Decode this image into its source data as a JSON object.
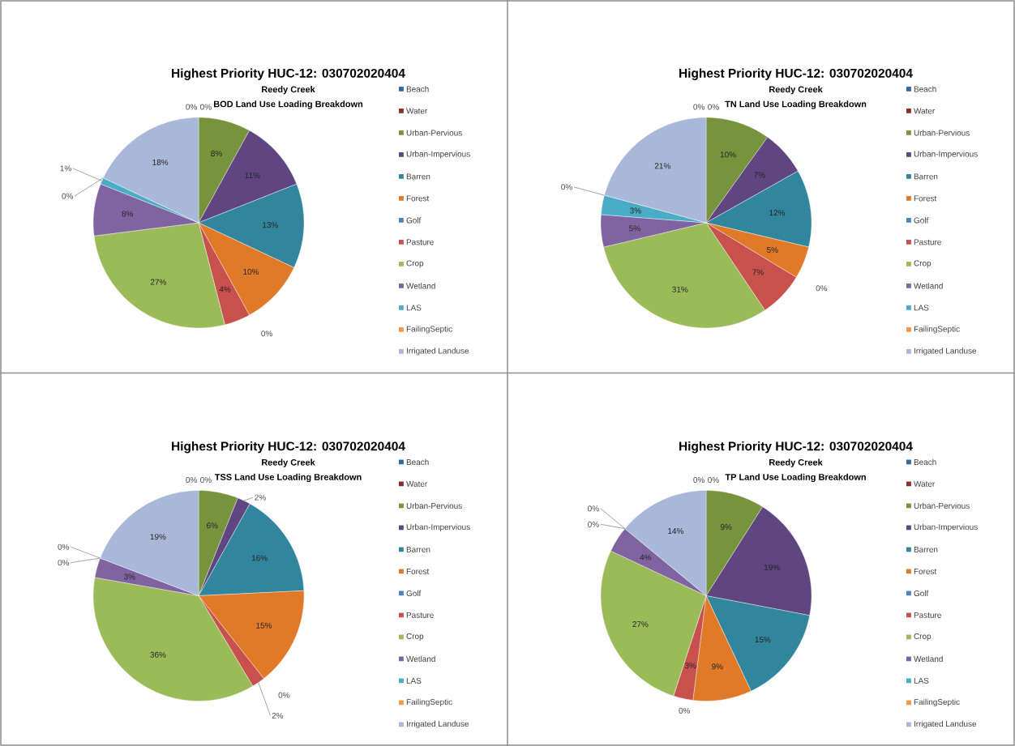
{
  "chart_data": [
    {
      "type": "pie",
      "title": "Highest Priority HUC-12: 030702020404",
      "subtitle": "Reedy Creek",
      "annotations": [
        "BOD  Land Use Loading Breakdown"
      ],
      "legend": "right",
      "categories": [
        "Beach",
        "Water",
        "Urban-Pervious",
        "Urban-Impervious",
        "Barren",
        "Forest",
        "Golf",
        "Pasture",
        "Crop",
        "Wetland",
        "LAS",
        "FailingSeptic",
        "Irrigated Landuse"
      ],
      "values": [
        0,
        0,
        8,
        11,
        13,
        10,
        0,
        4,
        27,
        8,
        1,
        0,
        18
      ],
      "value_labels": [
        "0%",
        "0%",
        "8%",
        "11%",
        "13%",
        "10%",
        "0%",
        "4%",
        "27%",
        "8%",
        "1%",
        "0%",
        "18%"
      ],
      "colors": [
        "#35689e",
        "#8b2e2b",
        "#77933c",
        "#5f4680",
        "#31859c",
        "#e07a28",
        "#4f81bd",
        "#c8504d",
        "#9bbb59",
        "#8064a2",
        "#4bacc6",
        "#f79646",
        "#a9b7d8"
      ]
    },
    {
      "type": "pie",
      "title": "Highest Priority HUC-12: 030702020404",
      "subtitle": "Reedy Creek",
      "annotations": [
        "TN  Land Use Loading Breakdown"
      ],
      "legend": "right",
      "categories": [
        "Beach",
        "Water",
        "Urban-Pervious",
        "Urban-Impervious",
        "Barren",
        "Forest",
        "Golf",
        "Pasture",
        "Crop",
        "Wetland",
        "LAS",
        "FailingSeptic",
        "Irrigated Landuse"
      ],
      "values": [
        0,
        0,
        10,
        7,
        12,
        5,
        0,
        7,
        31,
        5,
        3,
        0,
        21
      ],
      "value_labels": [
        "0%",
        "0%",
        "10%",
        "7%",
        "12%",
        "5%",
        "0%",
        "7%",
        "31%",
        "5%",
        "3%",
        "0%",
        "21%"
      ],
      "colors": [
        "#35689e",
        "#8b2e2b",
        "#77933c",
        "#5f4680",
        "#31859c",
        "#e07a28",
        "#4f81bd",
        "#c8504d",
        "#9bbb59",
        "#8064a2",
        "#4bacc6",
        "#f79646",
        "#a9b7d8"
      ]
    },
    {
      "type": "pie",
      "title": "Highest Priority HUC-12: 030702020404",
      "subtitle": "Reedy Creek",
      "annotations": [
        "TSS  Land Use Loading Breakdown"
      ],
      "legend": "right",
      "categories": [
        "Beach",
        "Water",
        "Urban-Pervious",
        "Urban-Impervious",
        "Barren",
        "Forest",
        "Golf",
        "Pasture",
        "Crop",
        "Wetland",
        "LAS",
        "FailingSeptic",
        "Irrigated Landuse"
      ],
      "values": [
        0,
        0,
        6,
        2,
        16,
        15,
        0,
        2,
        36,
        3,
        0,
        0,
        19
      ],
      "value_labels": [
        "0%",
        "0%",
        "6%",
        "2%",
        "16%",
        "15%",
        "0%",
        "2%",
        "36%",
        "3%",
        "0%",
        "0%",
        "19%"
      ],
      "colors": [
        "#35689e",
        "#8b2e2b",
        "#77933c",
        "#5f4680",
        "#31859c",
        "#e07a28",
        "#4f81bd",
        "#c8504d",
        "#9bbb59",
        "#8064a2",
        "#4bacc6",
        "#f79646",
        "#a9b7d8"
      ]
    },
    {
      "type": "pie",
      "title": "Highest Priority HUC-12: 030702020404",
      "subtitle": "Reedy Creek",
      "annotations": [
        "TP  Land Use Loading Breakdown"
      ],
      "legend": "right",
      "categories": [
        "Beach",
        "Water",
        "Urban-Pervious",
        "Urban-Impervious",
        "Barren",
        "Forest",
        "Golf",
        "Pasture",
        "Crop",
        "Wetland",
        "LAS",
        "FailingSeptic",
        "Irrigated Landuse"
      ],
      "values": [
        0,
        0,
        9,
        19,
        15,
        9,
        0,
        3,
        27,
        4,
        0,
        0,
        14
      ],
      "value_labels": [
        "0%",
        "0%",
        "9%",
        "19%",
        "15%",
        "9%",
        "0%",
        "3%",
        "27%",
        "4%",
        "0%",
        "0%",
        "14%"
      ],
      "colors": [
        "#35689e",
        "#8b2e2b",
        "#77933c",
        "#5f4680",
        "#31859c",
        "#e07a28",
        "#4f81bd",
        "#c8504d",
        "#9bbb59",
        "#8064a2",
        "#4bacc6",
        "#f79646",
        "#a9b7d8"
      ]
    }
  ]
}
